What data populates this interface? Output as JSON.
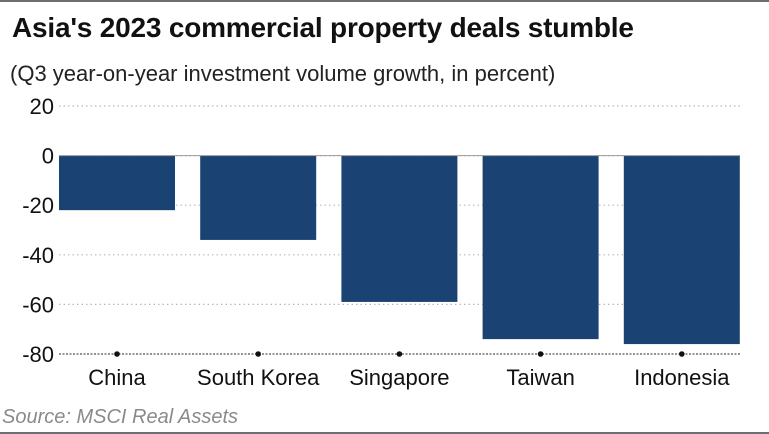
{
  "chart_data": {
    "type": "bar",
    "title": "Asia's 2023 commercial property deals stumble",
    "subtitle": "(Q3 year-on-year investment volume growth, in percent)",
    "source": "Source: MSCI Real Assets",
    "categories": [
      "China",
      "South Korea",
      "Singapore",
      "Taiwan",
      "Indonesia"
    ],
    "values": [
      -22,
      -34,
      -59,
      -74,
      -76
    ],
    "xlabel": "",
    "ylabel": "",
    "ylim": [
      -80,
      20
    ],
    "yticks": [
      20,
      0,
      -20,
      -40,
      -60,
      -80
    ],
    "ytick_labels": [
      "20",
      "0",
      "-20",
      "-40",
      "-60",
      "-80"
    ],
    "grid": true,
    "legend": "none",
    "colors": {
      "bar": "#1a4272",
      "grid": "#b8b8b8",
      "axis": "#555555",
      "zero_line": "#9a9a9a"
    }
  }
}
